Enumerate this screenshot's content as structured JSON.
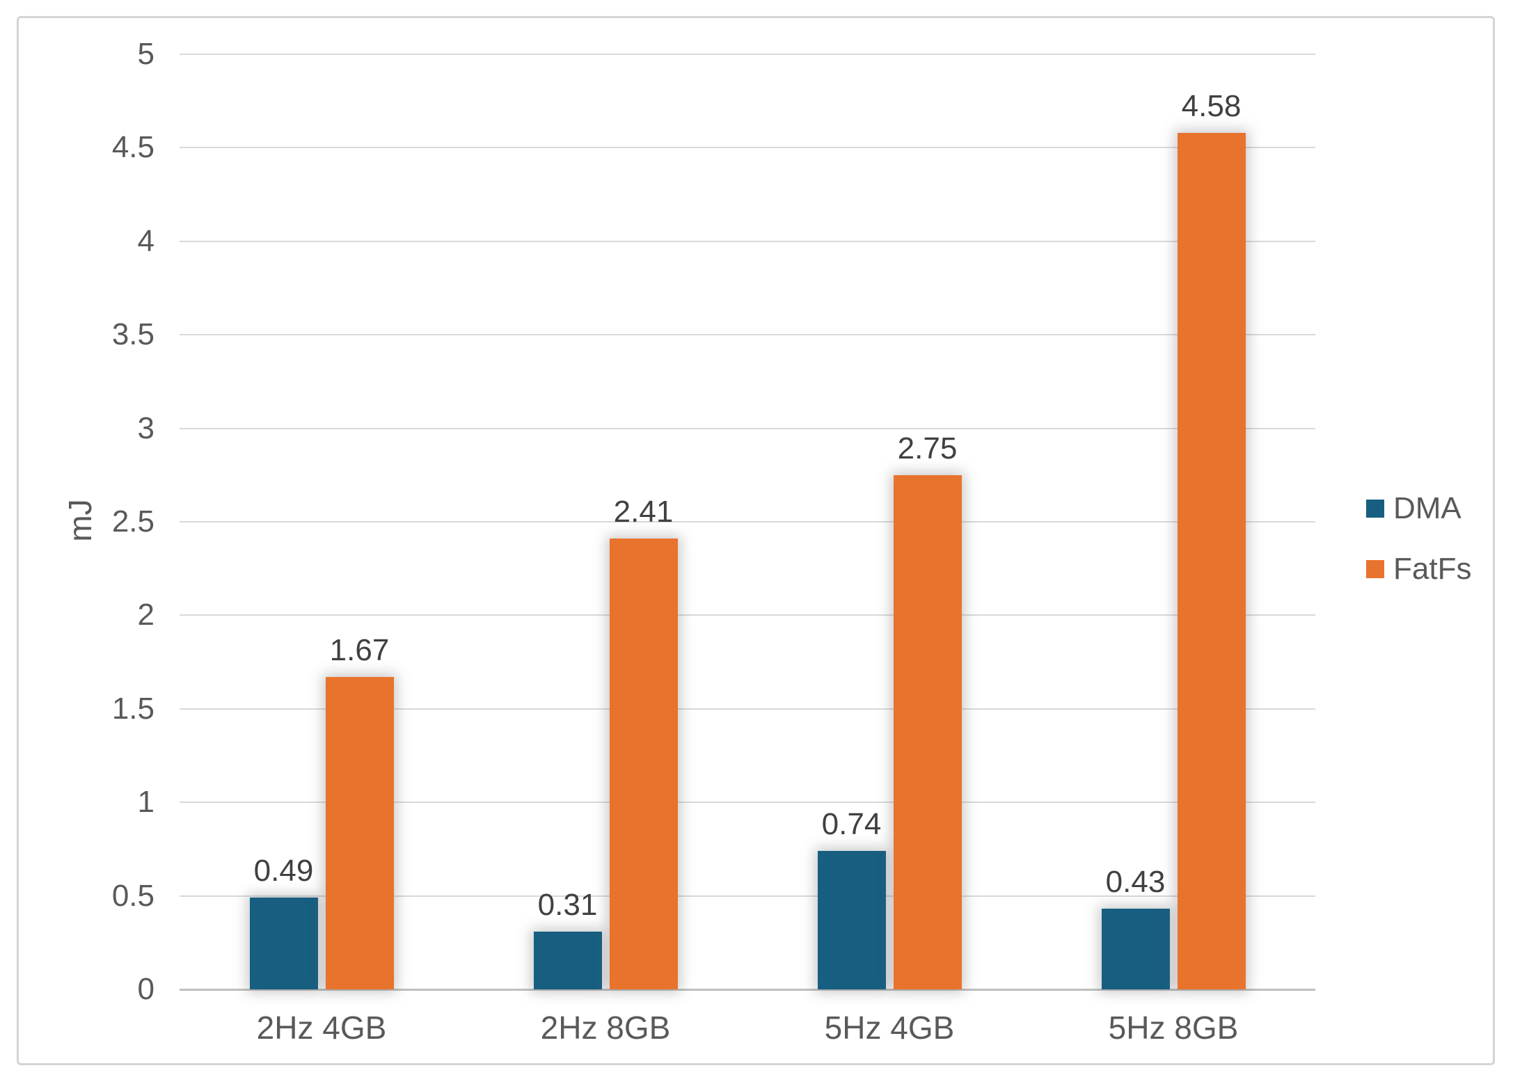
{
  "chart_data": {
    "type": "bar",
    "title": "",
    "ylabel": "mJ",
    "categories": [
      "2Hz 4GB",
      "2Hz 8GB",
      "5Hz 4GB",
      "5Hz 8GB"
    ],
    "series": [
      {
        "name": "DMA",
        "color": "#175e81",
        "values": [
          0.49,
          0.31,
          0.74,
          0.43
        ],
        "labels": [
          "0.49",
          "0.31",
          "0.74",
          "0.43"
        ]
      },
      {
        "name": "FatFs",
        "color": "#e8732d",
        "values": [
          1.67,
          2.41,
          2.75,
          4.58
        ],
        "labels": [
          "1.67",
          "2.41",
          "2.75",
          "4.58"
        ]
      }
    ],
    "y_axis": {
      "min": 0,
      "max": 5,
      "tick_step": 0.5,
      "tick_labels": [
        "0",
        "0.5",
        "1",
        "1.5",
        "2",
        "2.5",
        "3",
        "3.5",
        "4",
        "4.5",
        "5"
      ]
    },
    "legend": {
      "position": "right",
      "entries": [
        "DMA",
        "FatFs"
      ]
    },
    "grid": true,
    "colors": {
      "text": "#595959",
      "gridline": "#d9d9d9",
      "axis_line": "#bfbfbf",
      "frame_border": "#d4d4d4"
    }
  }
}
